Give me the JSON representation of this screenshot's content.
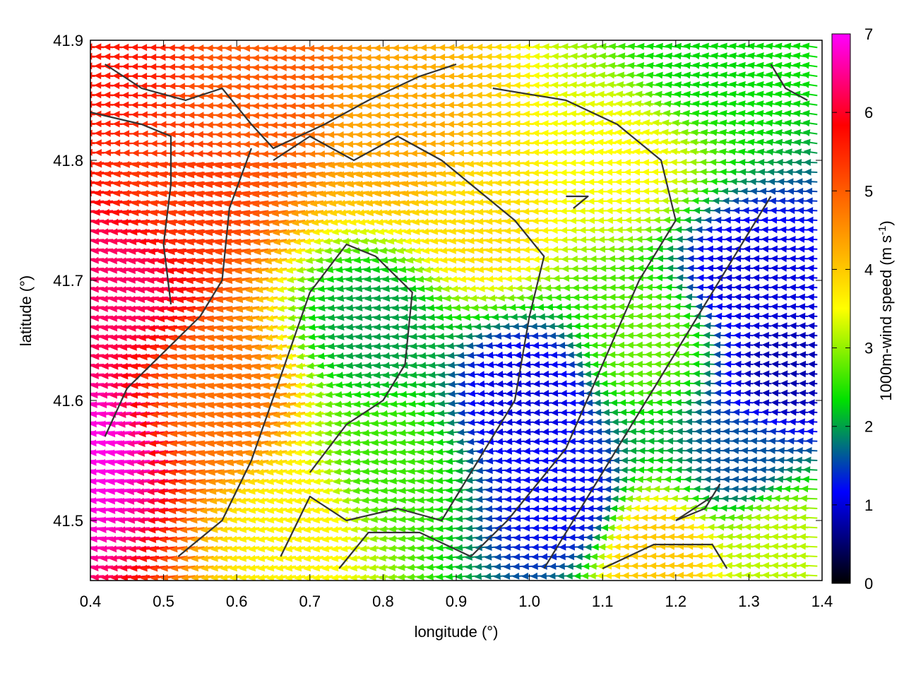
{
  "chart_data": {
    "type": "vector-field",
    "xlabel": "longitude (°)",
    "ylabel": "latitude (°)",
    "xlim": [
      0.4,
      1.4
    ],
    "ylim": [
      41.45,
      41.9
    ],
    "x_ticks": [
      "0.4",
      "0.5",
      "0.6",
      "0.7",
      "0.8",
      "0.9",
      "1.0",
      "1.1",
      "1.2",
      "1.3",
      "1.4"
    ],
    "y_ticks": [
      "41.5",
      "41.6",
      "41.7",
      "41.8",
      "41.9"
    ],
    "colorbar": {
      "label_main": "1000m-wind speed (m s",
      "label_sup": "-1",
      "label_end": ")",
      "range": [
        0,
        7
      ],
      "ticks": [
        "0",
        "1",
        "2",
        "3",
        "4",
        "5",
        "6",
        "7"
      ],
      "colors": [
        "#000000",
        "#0000ff",
        "#00e000",
        "#ffff00",
        "#ff8000",
        "#ff0000",
        "#ff00ff"
      ]
    },
    "grid": false,
    "wind_speed_field": {
      "description_units": "m s-1",
      "anchors": [
        {
          "lon": 0.42,
          "lat": 41.55,
          "speed": 6.9
        },
        {
          "lon": 0.45,
          "lat": 41.7,
          "speed": 6.3
        },
        {
          "lon": 0.45,
          "lat": 41.88,
          "speed": 5.6
        },
        {
          "lon": 0.55,
          "lat": 41.78,
          "speed": 5.3
        },
        {
          "lon": 0.6,
          "lat": 41.6,
          "speed": 4.8
        },
        {
          "lon": 0.65,
          "lat": 41.85,
          "speed": 5.0
        },
        {
          "lon": 0.7,
          "lat": 41.5,
          "speed": 3.6
        },
        {
          "lon": 0.8,
          "lat": 41.66,
          "speed": 2.0
        },
        {
          "lon": 0.82,
          "lat": 41.55,
          "speed": 2.6
        },
        {
          "lon": 0.85,
          "lat": 41.82,
          "speed": 4.3
        },
        {
          "lon": 0.95,
          "lat": 41.75,
          "speed": 3.8
        },
        {
          "lon": 1.0,
          "lat": 41.6,
          "speed": 1.0
        },
        {
          "lon": 1.05,
          "lat": 41.52,
          "speed": 1.2
        },
        {
          "lon": 1.15,
          "lat": 41.8,
          "speed": 3.5
        },
        {
          "lon": 1.18,
          "lat": 41.65,
          "speed": 2.8
        },
        {
          "lon": 1.25,
          "lat": 41.88,
          "speed": 2.3
        },
        {
          "lon": 1.3,
          "lat": 41.7,
          "speed": 1.0
        },
        {
          "lon": 1.35,
          "lat": 41.62,
          "speed": 0.8
        },
        {
          "lon": 1.3,
          "lat": 41.55,
          "speed": 1.6
        },
        {
          "lon": 1.35,
          "lat": 41.48,
          "speed": 3.2
        },
        {
          "lon": 1.2,
          "lat": 41.47,
          "speed": 4.0
        }
      ]
    },
    "contours": [
      [
        [
          0.42,
          41.88
        ],
        [
          0.47,
          41.86
        ],
        [
          0.53,
          41.85
        ],
        [
          0.58,
          41.86
        ],
        [
          0.62,
          41.83
        ],
        [
          0.65,
          41.81
        ],
        [
          0.72,
          41.83
        ],
        [
          0.78,
          41.85
        ],
        [
          0.85,
          41.87
        ],
        [
          0.9,
          41.88
        ]
      ],
      [
        [
          0.4,
          41.84
        ],
        [
          0.47,
          41.83
        ],
        [
          0.51,
          41.82
        ],
        [
          0.51,
          41.78
        ],
        [
          0.5,
          41.73
        ],
        [
          0.51,
          41.68
        ]
      ],
      [
        [
          0.42,
          41.57
        ],
        [
          0.45,
          41.61
        ],
        [
          0.5,
          41.64
        ],
        [
          0.55,
          41.67
        ],
        [
          0.58,
          41.7
        ],
        [
          0.59,
          41.76
        ],
        [
          0.62,
          41.81
        ]
      ],
      [
        [
          0.52,
          41.47
        ],
        [
          0.58,
          41.5
        ],
        [
          0.62,
          41.55
        ],
        [
          0.66,
          41.62
        ],
        [
          0.7,
          41.69
        ],
        [
          0.75,
          41.73
        ],
        [
          0.79,
          41.72
        ],
        [
          0.84,
          41.69
        ],
        [
          0.83,
          41.63
        ],
        [
          0.8,
          41.6
        ],
        [
          0.75,
          41.58
        ],
        [
          0.7,
          41.54
        ]
      ],
      [
        [
          0.66,
          41.47
        ],
        [
          0.7,
          41.52
        ],
        [
          0.75,
          41.5
        ],
        [
          0.82,
          41.51
        ],
        [
          0.88,
          41.5
        ],
        [
          0.93,
          41.55
        ],
        [
          0.98,
          41.6
        ],
        [
          1.0,
          41.67
        ],
        [
          1.02,
          41.72
        ],
        [
          0.98,
          41.75
        ],
        [
          0.92,
          41.78
        ],
        [
          0.88,
          41.8
        ],
        [
          0.82,
          41.82
        ],
        [
          0.76,
          41.8
        ],
        [
          0.7,
          41.82
        ],
        [
          0.65,
          41.8
        ]
      ],
      [
        [
          0.74,
          41.46
        ],
        [
          0.78,
          41.49
        ],
        [
          0.85,
          41.49
        ],
        [
          0.92,
          41.47
        ],
        [
          0.97,
          41.5
        ],
        [
          1.05,
          41.56
        ],
        [
          1.1,
          41.63
        ],
        [
          1.15,
          41.7
        ],
        [
          1.2,
          41.75
        ],
        [
          1.18,
          41.8
        ],
        [
          1.12,
          41.83
        ],
        [
          1.05,
          41.85
        ],
        [
          0.95,
          41.86
        ]
      ],
      [
        [
          1.02,
          41.46
        ],
        [
          1.08,
          41.52
        ],
        [
          1.13,
          41.57
        ],
        [
          1.18,
          41.62
        ],
        [
          1.22,
          41.66
        ],
        [
          1.26,
          41.7
        ],
        [
          1.3,
          41.74
        ],
        [
          1.33,
          41.77
        ]
      ],
      [
        [
          1.1,
          41.46
        ],
        [
          1.17,
          41.48
        ],
        [
          1.25,
          41.48
        ],
        [
          1.27,
          41.46
        ]
      ],
      [
        [
          1.2,
          41.5
        ],
        [
          1.25,
          41.52
        ],
        [
          1.26,
          41.53
        ],
        [
          1.24,
          41.51
        ],
        [
          1.2,
          41.5
        ]
      ],
      [
        [
          1.05,
          41.77
        ],
        [
          1.08,
          41.77
        ],
        [
          1.06,
          41.76
        ]
      ],
      [
        [
          1.33,
          41.88
        ],
        [
          1.35,
          41.86
        ],
        [
          1.38,
          41.85
        ]
      ]
    ]
  }
}
